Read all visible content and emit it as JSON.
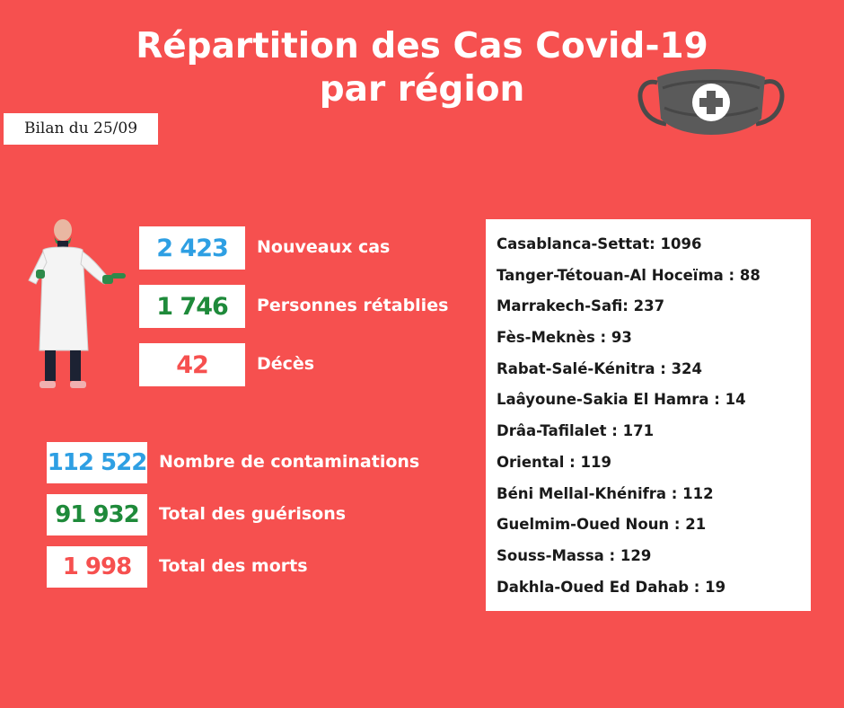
{
  "header": {
    "title_line1": "Répartition des Cas Covid-19",
    "title_line2": "par région",
    "date": "Bilan du 25/09"
  },
  "daily": [
    {
      "value": "2 423",
      "label": "Nouveaux cas",
      "color": "#2e9fe3"
    },
    {
      "value": "1 746",
      "label": "Personnes rétablies",
      "color": "#1e8a3a"
    },
    {
      "value": "42",
      "label": "Décès",
      "color": "#f6504f"
    }
  ],
  "totals": [
    {
      "value": "112 522",
      "label": "Nombre de contaminations",
      "color": "#2e9fe3"
    },
    {
      "value": "91 932",
      "label": "Total des guérisons",
      "color": "#1e8a3a"
    },
    {
      "value": "1 998",
      "label": "Total des morts",
      "color": "#f6504f"
    }
  ],
  "regions": [
    "Casablanca-Settat: 1096",
    "Tanger-Tétouan-Al Hoceïma : 88",
    "Marrakech-Safi: 237",
    "Fès-Meknès : 93",
    "Rabat-Salé-Kénitra : 324",
    "Laâyoune-Sakia El Hamra : 14",
    "Drâa-Tafilalet : 171",
    "Oriental : 119",
    "Béni Mellal-Khénifra : 112",
    "Guelmim-Oued Noun : 21",
    "Souss-Massa : 129",
    "Dakhla-Oued Ed Dahab : 19"
  ],
  "colors": {
    "background": "#f6504f",
    "blue": "#2e9fe3",
    "green": "#1e8a3a",
    "red": "#f6504f"
  },
  "icons": [
    "mask-with-medical-cross-icon",
    "doctor-illustration"
  ]
}
